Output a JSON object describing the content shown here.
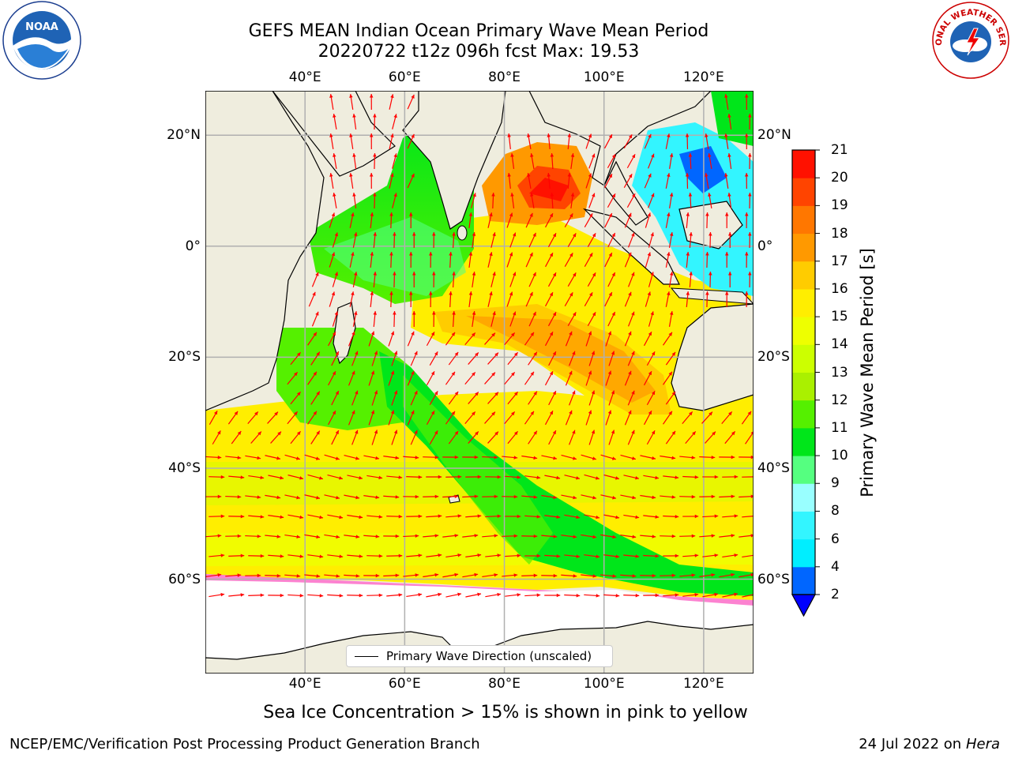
{
  "title": "GEFS MEAN Indian Ocean Primary Wave Mean Period",
  "subtitle": "20220722 t12z 096h fcst   Max: 19.53",
  "map": {
    "lon_ticks": [
      "40°E",
      "60°E",
      "80°E",
      "100°E",
      "120°E"
    ],
    "lat_ticks": [
      "20°N",
      "0°",
      "20°S",
      "40°S",
      "60°S"
    ],
    "lon_values": [
      40,
      60,
      80,
      100,
      120
    ],
    "lat_values": [
      20,
      0,
      -20,
      -40,
      -60
    ],
    "lon_range": [
      20,
      130
    ],
    "lat_range": [
      -77,
      28
    ],
    "gridlines": true,
    "arrow_color": "#ff0000"
  },
  "legend": {
    "label": "Primary Wave Direction (unscaled)",
    "placement": "bottom-center"
  },
  "colorbar": {
    "label": "Primary Wave Mean Period [s]",
    "ticks": [
      "2",
      "4",
      "6",
      "8",
      "9",
      "10",
      "11",
      "12",
      "13",
      "14",
      "15",
      "16",
      "17",
      "18",
      "19",
      "20",
      "21"
    ],
    "colors": [
      "#0066ff",
      "#00eeff",
      "#33f5ff",
      "#99ffff",
      "#55ff80",
      "#00e61a",
      "#55f000",
      "#aaf000",
      "#ccff00",
      "#eeff00",
      "#ffee00",
      "#ffcc00",
      "#ff9900",
      "#ff7700",
      "#ff4400",
      "#ff1100"
    ],
    "extend": "min"
  },
  "caption": "Sea Ice Concentration > 15% is shown in pink to yellow",
  "footer": {
    "left": "NCEP/EMC/Verification Post Processing Product Generation Branch",
    "right_date": "24 Jul 2022 on",
    "right_host": "Hera"
  },
  "logos": {
    "left": "NOAA",
    "right": "NATIONAL WEATHER SERVICE"
  }
}
